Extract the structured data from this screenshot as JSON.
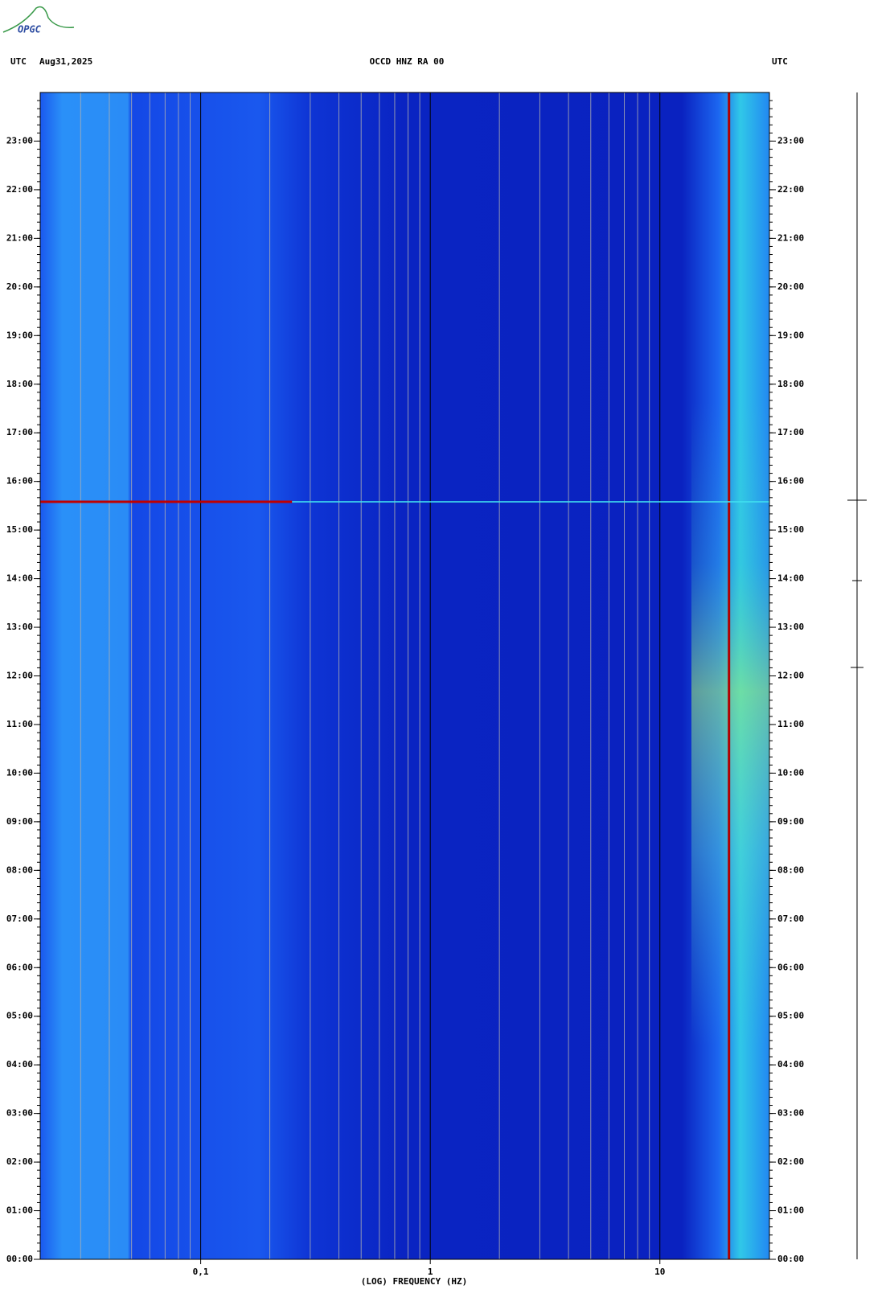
{
  "chart_data": {
    "type": "spectrogram",
    "logo": "OPGC",
    "left_label": "UTC",
    "date": "Aug31,2025",
    "title": "OCCD HNZ RA 00",
    "right_label": "UTC",
    "xlabel": "(LOG) FREQUENCY (HZ)",
    "xscale": "log",
    "xlim": [
      0.02,
      30
    ],
    "xticks": [
      {
        "value": 0.1,
        "label": "0,1"
      },
      1,
      10
    ],
    "xminorticks": [
      0.03,
      0.04,
      0.05,
      0.06,
      0.07,
      0.08,
      0.09,
      0.2,
      0.3,
      0.4,
      0.5,
      0.6,
      0.7,
      0.8,
      0.9,
      2,
      3,
      4,
      5,
      6,
      7,
      8,
      9,
      20,
      30
    ],
    "ylim": [
      0,
      24
    ],
    "yticks": [
      {
        "value": 0,
        "label": "00:00"
      },
      {
        "value": 1,
        "label": "01:00"
      },
      {
        "value": 2,
        "label": "02:00"
      },
      {
        "value": 3,
        "label": "03:00"
      },
      {
        "value": 4,
        "label": "04:00"
      },
      {
        "value": 5,
        "label": "05:00"
      },
      {
        "value": 6,
        "label": "06:00"
      },
      {
        "value": 7,
        "label": "07:00"
      },
      {
        "value": 8,
        "label": "08:00"
      },
      {
        "value": 9,
        "label": "09:00"
      },
      {
        "value": 10,
        "label": "10:00"
      },
      {
        "value": 11,
        "label": "11:00"
      },
      {
        "value": 12,
        "label": "12:00"
      },
      {
        "value": 13,
        "label": "13:00"
      },
      {
        "value": 14,
        "label": "14:00"
      },
      {
        "value": 15,
        "label": "15:00"
      },
      {
        "value": 16,
        "label": "16:00"
      },
      {
        "value": 17,
        "label": "17:00"
      },
      {
        "value": 18,
        "label": "18:00"
      },
      {
        "value": 19,
        "label": "19:00"
      },
      {
        "value": 20,
        "label": "20:00"
      },
      {
        "value": 21,
        "label": "21:00"
      },
      {
        "value": 22,
        "label": "22:00"
      },
      {
        "value": 23,
        "label": "23:00"
      }
    ],
    "yminor_divisions": 6,
    "grid": true,
    "vlines": [
      {
        "x": 20,
        "color": "#b00000"
      }
    ],
    "hlines": [
      {
        "y": 15.58,
        "color": "#c00000"
      }
    ]
  }
}
